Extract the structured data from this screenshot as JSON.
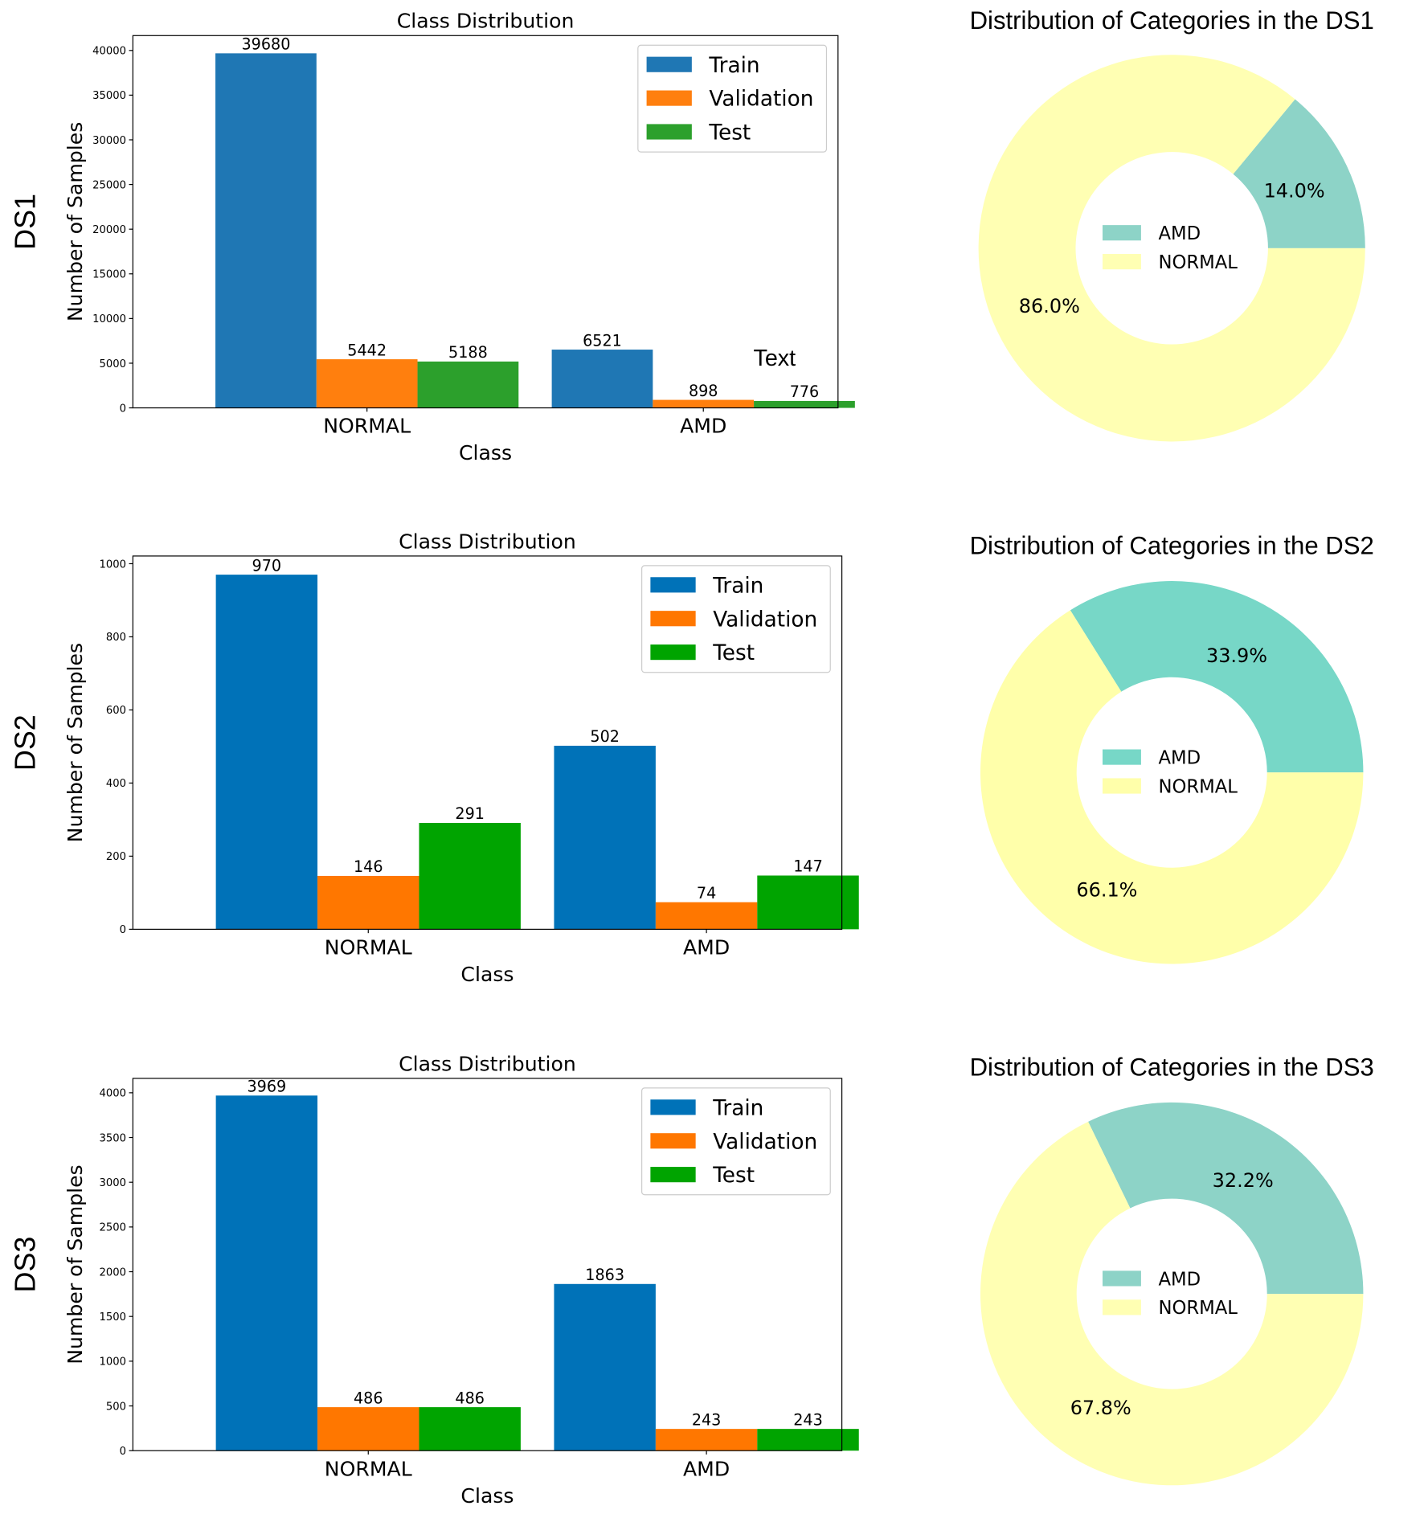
{
  "chart_data": [
    {
      "type": "bar",
      "row_label": "DS1",
      "title": "Class Distribution",
      "xlabel": "Class",
      "ylabel": "Number of Samples",
      "categories": [
        "NORMAL",
        "AMD"
      ],
      "yticks": [
        0,
        5000,
        10000,
        15000,
        20000,
        25000,
        30000,
        35000,
        40000
      ],
      "ylim": [
        0,
        41664
      ],
      "legend_position": "top-right",
      "annotation": "Text",
      "series": [
        {
          "name": "Train",
          "color": "#1f77b4",
          "values": [
            39680,
            6521
          ]
        },
        {
          "name": "Validation",
          "color": "#ff7f0e",
          "values": [
            5442,
            898
          ]
        },
        {
          "name": "Test",
          "color": "#2ca02c",
          "values": [
            5188,
            776
          ]
        }
      ]
    },
    {
      "type": "pie",
      "title": "Distribution of Categories in the DS1",
      "legend_position": "center",
      "slices": [
        {
          "label": "AMD",
          "value": 14.0,
          "display": "14.0%",
          "color": "#8dd3c7"
        },
        {
          "label": "NORMAL",
          "value": 86.0,
          "display": "86.0%",
          "color": "#ffffb3"
        }
      ]
    },
    {
      "type": "bar",
      "row_label": "DS2",
      "title": "Class Distribution",
      "xlabel": "Class",
      "ylabel": "Number of Samples",
      "categories": [
        "NORMAL",
        "AMD"
      ],
      "yticks": [
        0,
        200,
        400,
        600,
        800,
        1000
      ],
      "ylim": [
        0,
        1021
      ],
      "legend_position": "top-right",
      "series": [
        {
          "name": "Train",
          "color": "#0072b8",
          "values": [
            970,
            502
          ]
        },
        {
          "name": "Validation",
          "color": "#ff7700",
          "values": [
            146,
            74
          ]
        },
        {
          "name": "Test",
          "color": "#00a400",
          "values": [
            291,
            147
          ]
        }
      ]
    },
    {
      "type": "pie",
      "title": "Distribution of Categories in the DS2",
      "legend_position": "center",
      "slices": [
        {
          "label": "AMD",
          "value": 33.9,
          "display": "33.9%",
          "color": "#77d7c7"
        },
        {
          "label": "NORMAL",
          "value": 66.1,
          "display": "66.1%",
          "color": "#ffffaa"
        }
      ]
    },
    {
      "type": "bar",
      "row_label": "DS3",
      "title": "Class Distribution",
      "xlabel": "Class",
      "ylabel": "Number of Samples",
      "categories": [
        "NORMAL",
        "AMD"
      ],
      "yticks": [
        0,
        500,
        1000,
        1500,
        2000,
        2500,
        3000,
        3500,
        4000
      ],
      "ylim": [
        0,
        4161
      ],
      "legend_position": "top-right",
      "series": [
        {
          "name": "Train",
          "color": "#0072b8",
          "values": [
            3969,
            1863
          ]
        },
        {
          "name": "Validation",
          "color": "#ff7700",
          "values": [
            486,
            243
          ]
        },
        {
          "name": "Test",
          "color": "#00a400",
          "values": [
            486,
            243
          ]
        }
      ]
    },
    {
      "type": "pie",
      "title": "Distribution of Categories in the DS3",
      "legend_position": "center",
      "slices": [
        {
          "label": "AMD",
          "value": 32.2,
          "display": "32.2%",
          "color": "#8dd3c7"
        },
        {
          "label": "NORMAL",
          "value": 67.8,
          "display": "67.8%",
          "color": "#ffffb3"
        }
      ]
    }
  ]
}
